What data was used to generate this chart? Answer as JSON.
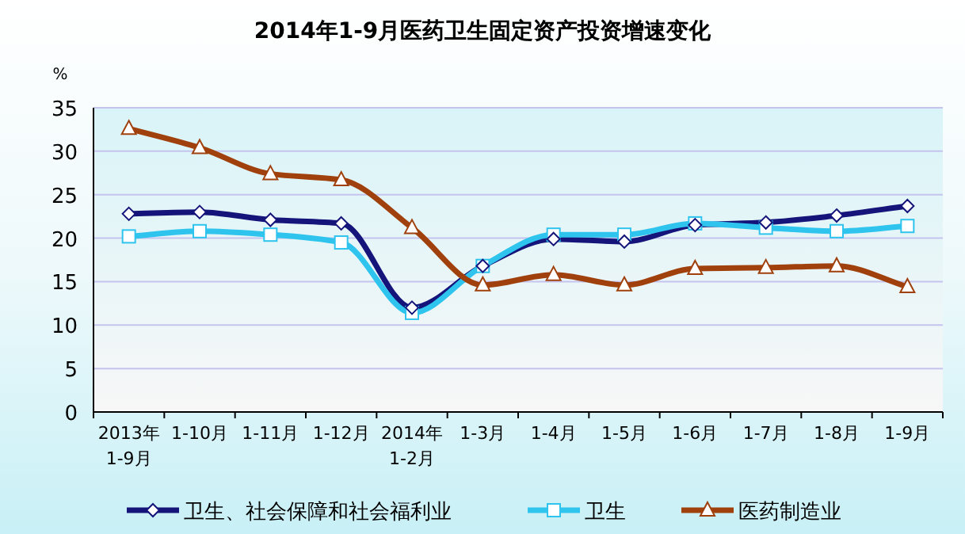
{
  "chart_data": {
    "type": "line",
    "title": "2014年1-9月医药卫生固定资产投资增速变化",
    "ylabel": "%",
    "categories": [
      "2013年\n1-9月",
      "1-10月",
      "1-11月",
      "1-12月",
      "2014年\n1-2月",
      "1-3月",
      "1-4月",
      "1-5月",
      "1-6月",
      "1-7月",
      "1-8月",
      "1-9月"
    ],
    "series": [
      {
        "name": "卫生、社会保障和社会福利业",
        "color": "#14147a",
        "marker": "diamond",
        "values": [
          22.8,
          23.0,
          22.1,
          21.7,
          12.0,
          16.8,
          19.9,
          19.6,
          21.5,
          21.8,
          22.6,
          23.7
        ]
      },
      {
        "name": "卫生",
        "color": "#2ec4ee",
        "marker": "square",
        "values": [
          20.2,
          20.8,
          20.4,
          19.5,
          11.4,
          16.8,
          20.4,
          20.4,
          21.7,
          21.2,
          20.8,
          21.4
        ]
      },
      {
        "name": "医药制造业",
        "color": "#a0400c",
        "marker": "triangle",
        "values": [
          32.6,
          30.4,
          27.4,
          26.7,
          21.2,
          14.6,
          15.8,
          14.6,
          16.5,
          16.6,
          16.8,
          14.4
        ]
      }
    ],
    "ylim": [
      0,
      35
    ],
    "yticks": [
      0,
      5,
      10,
      15,
      20,
      25,
      30,
      35
    ],
    "grid": "y",
    "legend": "bottom",
    "line_style": "solid"
  }
}
